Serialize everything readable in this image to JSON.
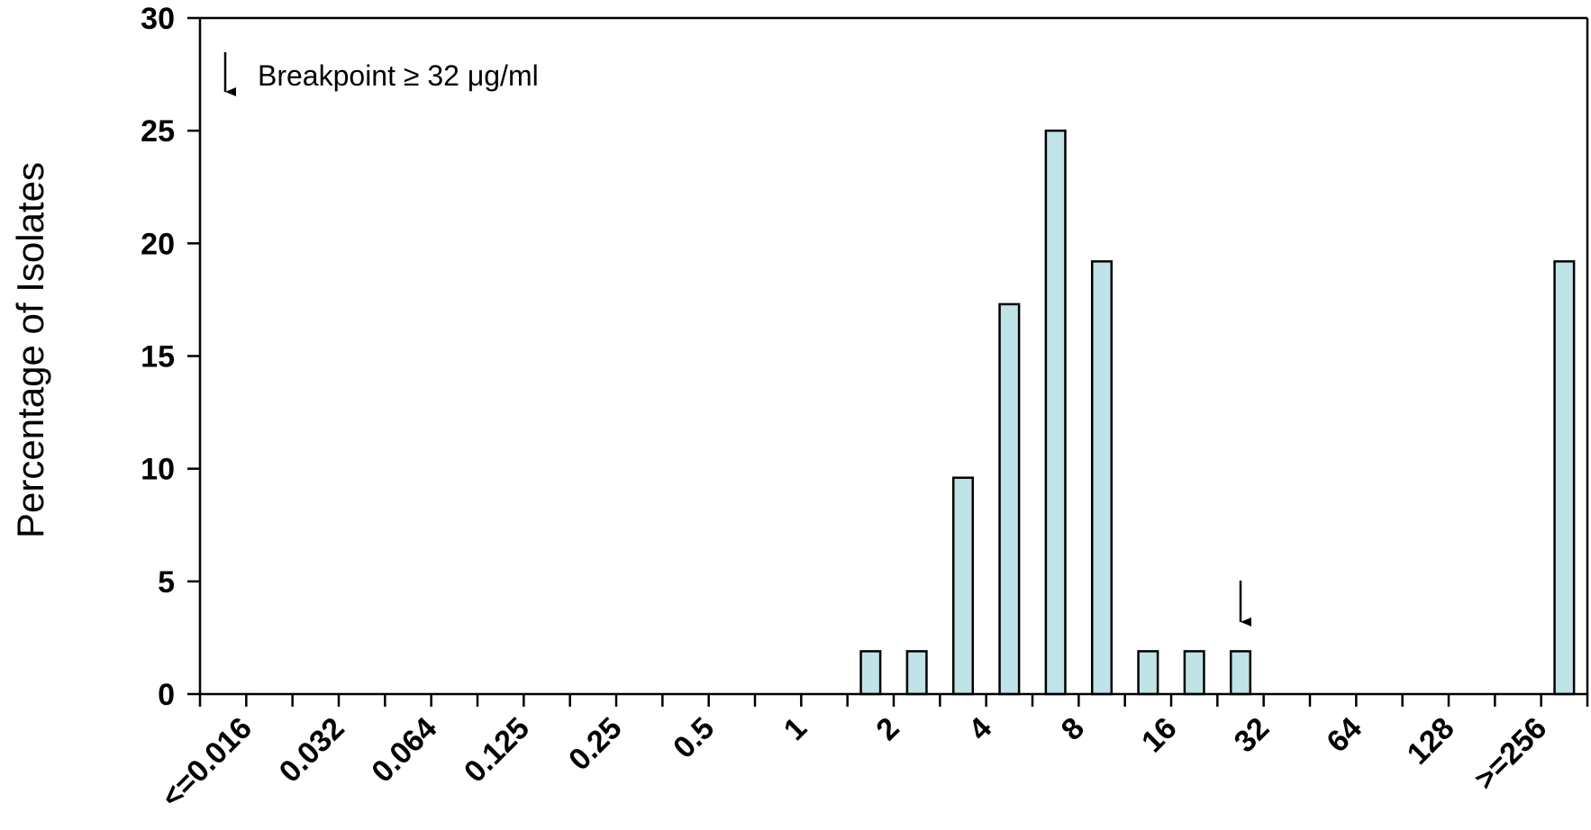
{
  "chart_data": {
    "type": "bar",
    "ylabel": "Percentage of Isolates",
    "xlabel": "",
    "ylim": [
      0,
      30
    ],
    "yticks": [
      0,
      5,
      10,
      15,
      20,
      25,
      30
    ],
    "x_tick_labels": [
      "<=0.016",
      "0.032",
      "0.064",
      "0.125",
      "0.25",
      "0.5",
      "1",
      "2",
      "4",
      "8",
      "16",
      "32",
      "64",
      "128",
      ">=256"
    ],
    "categories": [
      "2",
      "",
      "4",
      "",
      "8",
      "",
      "16",
      "",
      "32",
      "",
      "64",
      "",
      "128",
      "",
      ">=256"
    ],
    "bars": [
      {
        "slot": 14,
        "value": 1.9
      },
      {
        "slot": 15,
        "value": 1.9
      },
      {
        "slot": 16,
        "value": 9.6
      },
      {
        "slot": 17,
        "value": 17.3
      },
      {
        "slot": 18,
        "value": 25.0
      },
      {
        "slot": 19,
        "value": 19.2
      },
      {
        "slot": 20,
        "value": 1.9
      },
      {
        "slot": 21,
        "value": 1.9
      },
      {
        "slot": 22,
        "value": 1.9
      },
      {
        "slot": 29,
        "value": 19.2
      }
    ],
    "slot_count": 30,
    "grid": false,
    "legend": {
      "text": "Breakpoint  ≥ 32 μg/ml",
      "placement": "top-left"
    },
    "breakpoint_marker": {
      "slot": 22,
      "y_value": 3.2
    }
  }
}
